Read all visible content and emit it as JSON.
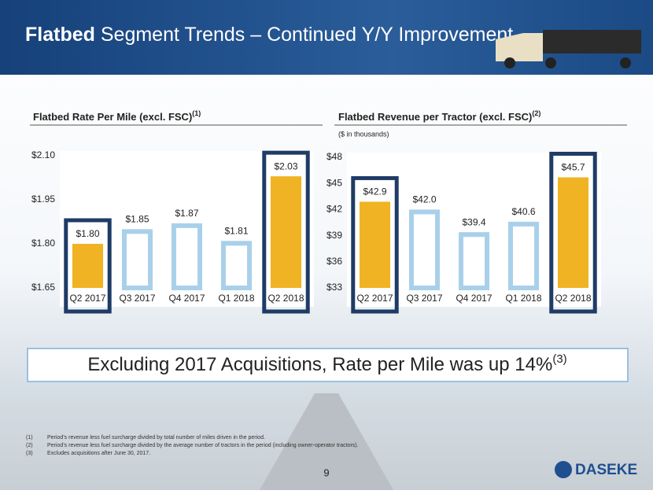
{
  "header": {
    "title_bold": "Flatbed",
    "title_rest": "Segment Trends – Continued Y/Y Improvement"
  },
  "chart_data": [
    {
      "type": "bar",
      "title": "Flatbed Rate Per Mile (excl. FSC)",
      "title_note": "(1)",
      "categories": [
        "Q2 2017",
        "Q3 2017",
        "Q4 2017",
        "Q1 2018",
        "Q2 2018"
      ],
      "values": [
        1.8,
        1.85,
        1.87,
        1.81,
        2.03
      ],
      "value_labels": [
        "$1.80",
        "$1.85",
        "$1.87",
        "$1.81",
        "$2.03"
      ],
      "colors": [
        "#f0b323",
        "#a9d0ea",
        "#a9d0ea",
        "#a9d0ea",
        "#f0b323"
      ],
      "filled": [
        true,
        false,
        false,
        false,
        true
      ],
      "outlined": [
        true,
        false,
        false,
        false,
        true
      ],
      "outline_color": "#1f3b66",
      "ylim": [
        1.65,
        2.1
      ],
      "yticks": [
        {
          "value": 1.65,
          "label": "$1.65"
        },
        {
          "value": 1.8,
          "label": "$1.80"
        },
        {
          "value": 1.95,
          "label": "$1.95"
        },
        {
          "value": 2.1,
          "label": "$2.10"
        }
      ],
      "grid": false
    },
    {
      "type": "bar",
      "title": "Flatbed Revenue per Tractor (excl. FSC)",
      "title_note": "(2)",
      "subtitle": "($ in thousands)",
      "categories": [
        "Q2 2017",
        "Q3 2017",
        "Q4 2017",
        "Q1 2018",
        "Q2 2018"
      ],
      "values": [
        42.9,
        42.0,
        39.4,
        40.6,
        45.7
      ],
      "value_labels": [
        "$42.9",
        "$42.0",
        "$39.4",
        "$40.6",
        "$45.7"
      ],
      "colors": [
        "#f0b323",
        "#a9d0ea",
        "#a9d0ea",
        "#a9d0ea",
        "#f0b323"
      ],
      "filled": [
        true,
        false,
        false,
        false,
        true
      ],
      "outlined": [
        true,
        false,
        false,
        false,
        true
      ],
      "outline_color": "#1f3b66",
      "ylim": [
        33,
        48
      ],
      "yticks": [
        {
          "value": 33,
          "label": "$33"
        },
        {
          "value": 36,
          "label": "$36"
        },
        {
          "value": 39,
          "label": "$39"
        },
        {
          "value": 42,
          "label": "$42"
        },
        {
          "value": 45,
          "label": "$45"
        },
        {
          "value": 48,
          "label": "$48"
        }
      ],
      "grid": false
    }
  ],
  "banner": {
    "text": "Excluding 2017 Acquisitions, Rate per Mile was up 14%",
    "note": "(3)"
  },
  "footnotes": [
    {
      "marker": "(1)",
      "text": "Period’s revenue less fuel surcharge divided by total number of miles driven in the period."
    },
    {
      "marker": "(2)",
      "text": "Period’s revenue less fuel surcharge divided by the average number of tractors in the period (including owner-operator tractors)."
    },
    {
      "marker": "(3)",
      "text": "Excludes acquisitions after June 30, 2017."
    }
  ],
  "page_number": "9",
  "logo": "DASEKE"
}
